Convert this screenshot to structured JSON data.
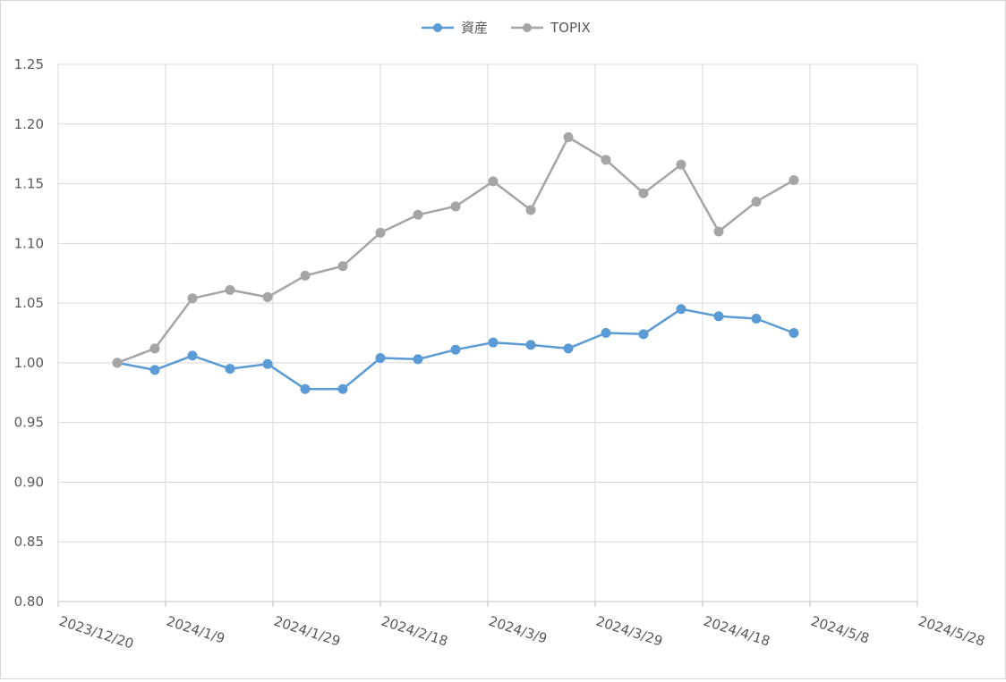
{
  "chart_data": {
    "type": "line",
    "title": "",
    "xlabel": "",
    "ylabel": "",
    "x_axis_kind": "date",
    "xlim": [
      "2023-12-20",
      "2024-05-28"
    ],
    "x_ticks": [
      "2023-12-20",
      "2024-01-09",
      "2024-01-29",
      "2024-02-18",
      "2024-03-09",
      "2024-03-29",
      "2024-04-18",
      "2024-05-08",
      "2024-05-28"
    ],
    "x_tick_labels": [
      "2023/12/20",
      "2024/1/9",
      "2024/1/29",
      "2024/2/18",
      "2024/3/9",
      "2024/3/29",
      "2024/4/18",
      "2024/5/8",
      "2024/5/28"
    ],
    "ylim": [
      0.8,
      1.25
    ],
    "y_ticks": [
      0.8,
      0.85,
      0.9,
      0.95,
      1.0,
      1.05,
      1.1,
      1.15,
      1.2,
      1.25
    ],
    "y_tick_labels": [
      "0.80",
      "0.85",
      "0.90",
      "0.95",
      "1.00",
      "1.05",
      "1.10",
      "1.15",
      "1.20",
      "1.25"
    ],
    "grid": true,
    "legend_position": "top-center",
    "x": [
      "2023-12-31",
      "2024-01-07",
      "2024-01-14",
      "2024-01-21",
      "2024-01-28",
      "2024-02-04",
      "2024-02-11",
      "2024-02-18",
      "2024-02-25",
      "2024-03-03",
      "2024-03-10",
      "2024-03-17",
      "2024-03-24",
      "2024-03-31",
      "2024-04-07",
      "2024-04-14",
      "2024-04-21",
      "2024-04-28",
      "2024-05-05"
    ],
    "series": [
      {
        "name": "資産",
        "color": "#5b9bd5",
        "values": [
          1.0,
          0.994,
          1.006,
          0.995,
          0.999,
          0.978,
          0.978,
          1.004,
          1.003,
          1.011,
          1.017,
          1.015,
          1.012,
          1.025,
          1.024,
          1.045,
          1.039,
          1.037,
          1.025
        ]
      },
      {
        "name": "TOPIX",
        "color": "#a5a5a5",
        "values": [
          1.0,
          1.012,
          1.054,
          1.061,
          1.055,
          1.073,
          1.081,
          1.109,
          1.124,
          1.131,
          1.152,
          1.128,
          1.189,
          1.17,
          1.142,
          1.166,
          1.11,
          1.135,
          1.153
        ]
      }
    ]
  },
  "style": {
    "gridline_color": "#d9d9d9",
    "axis_color": "#bfbfbf",
    "text_color": "#595959"
  }
}
